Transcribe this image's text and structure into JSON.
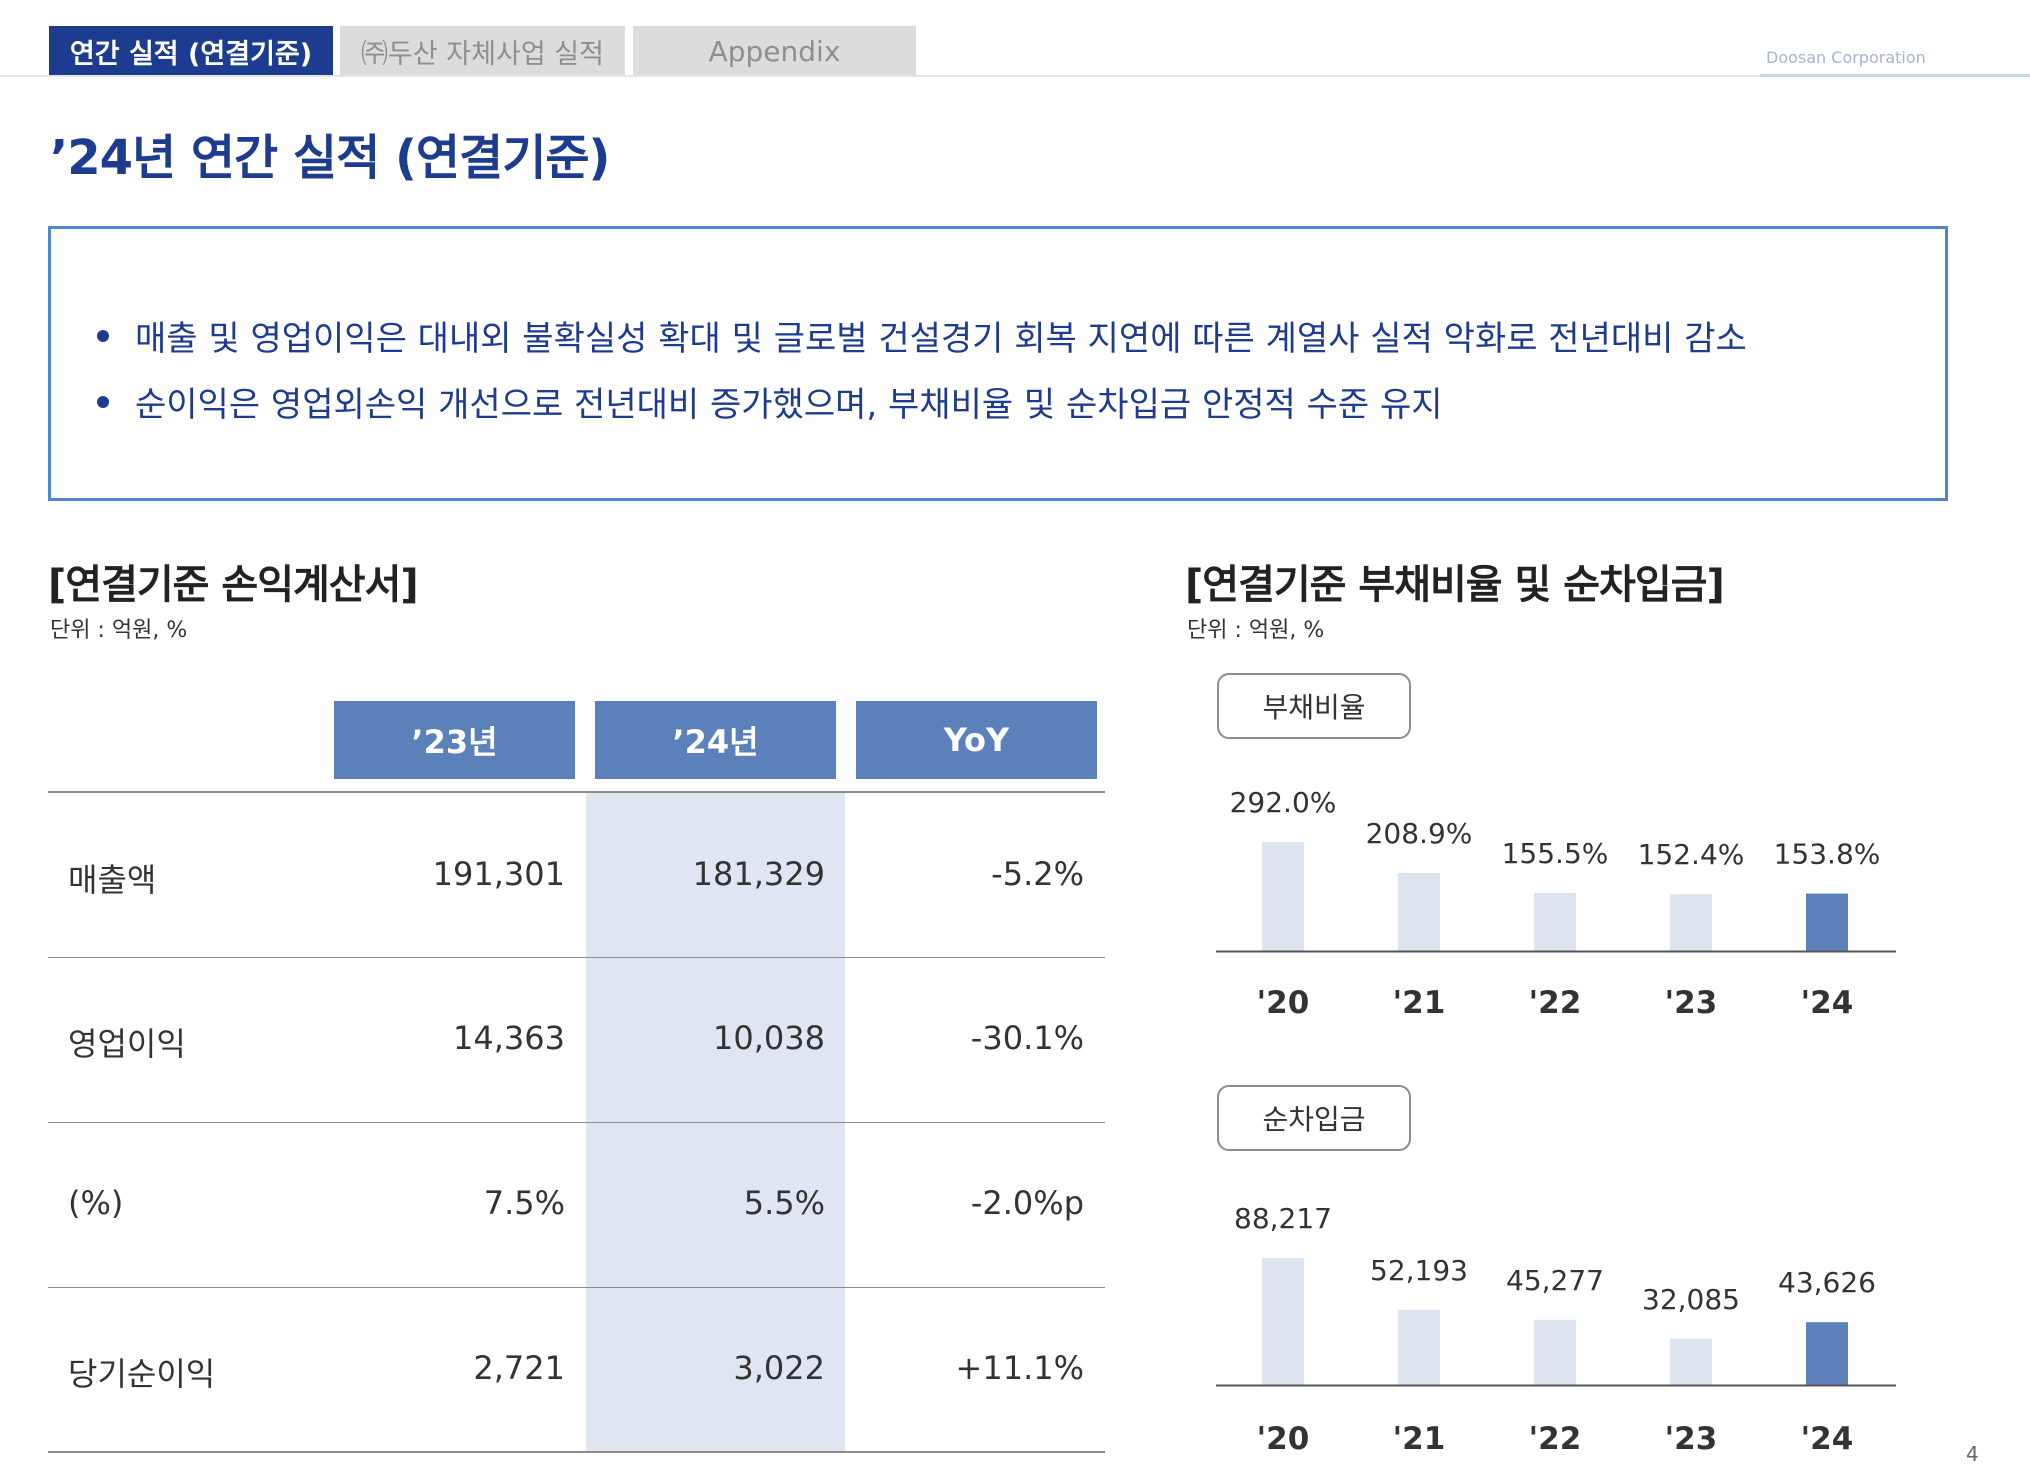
{
  "nav": {
    "tabs": [
      {
        "label": "연간 실적 (연결기준)"
      },
      {
        "label": "㈜두산 자체사업 실적"
      },
      {
        "label": "Appendix"
      }
    ],
    "brand": "Doosan Corporation"
  },
  "page": {
    "title": "’24년 연간 실적 (연결기준)",
    "number": "4"
  },
  "summary": {
    "bullets": [
      "매출 및 영업이익은 대내외 불확실성 확대 및 글로벌 건설경기 회복 지연에 따른 계열사 실적 악화로 전년대비 감소",
      "순이익은 영업외손익 개선으로 전년대비 증가했으며, 부채비율 및 순차입금 안정적 수준 유지"
    ]
  },
  "income": {
    "title": "[연결기준 손익계산서]",
    "unit": "단위 : 억원, %",
    "headers": [
      "’23년",
      "’24년",
      "YoY"
    ],
    "rows": [
      {
        "label": "매출액",
        "y23": "191,301",
        "y24": "181,329",
        "yoy": "-5.2%"
      },
      {
        "label": "영업이익",
        "y23": "14,363",
        "y24": "10,038",
        "yoy": "-30.1%"
      },
      {
        "label": "(%)",
        "y23": "7.5%",
        "y24": "5.5%",
        "yoy": "-2.0%p"
      },
      {
        "label": "당기순이익",
        "y23": "2,721",
        "y24": "3,022",
        "yoy": "+11.1%"
      }
    ]
  },
  "debt": {
    "title": "[연결기준 부채비율 및 순차입금]",
    "unit": "단위 : 억원, %",
    "colors": {
      "past": "#dce4f0",
      "current": "#5b80ba"
    }
  },
  "chart_data": [
    {
      "type": "bar",
      "title": "부채비율",
      "categories": [
        "'20",
        "'21",
        "'22",
        "'23",
        "'24"
      ],
      "values": [
        292.0,
        208.9,
        155.5,
        152.4,
        153.8
      ],
      "labels": [
        "292.0%",
        "208.9%",
        "155.5%",
        "152.4%",
        "153.8%"
      ],
      "unit": "%"
    },
    {
      "type": "bar",
      "title": "순차입금",
      "categories": [
        "'20",
        "'21",
        "'22",
        "'23",
        "'24"
      ],
      "values": [
        88217,
        52193,
        45277,
        32085,
        43626
      ],
      "labels": [
        "88,217",
        "52,193",
        "45,277",
        "32,085",
        "43,626"
      ],
      "unit": "억원"
    }
  ]
}
